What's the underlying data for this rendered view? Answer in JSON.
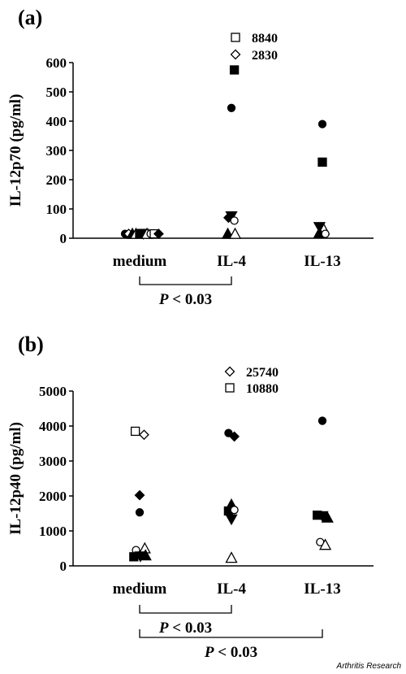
{
  "credit": "Arthritis Research",
  "chart_data": [
    {
      "type": "scatter",
      "panel_label": "(a)",
      "ylabel": "IL-12p70 (pg/ml)",
      "categories": [
        "medium",
        "IL-4",
        "IL-13"
      ],
      "ylim": [
        0,
        600
      ],
      "yticks": [
        0,
        100,
        200,
        300,
        400,
        500,
        600
      ],
      "points": [
        {
          "cat": 0,
          "off": -1.0,
          "y": 15,
          "marker": "filled-circle"
        },
        {
          "cat": 0,
          "off": -0.75,
          "y": 15,
          "marker": "open-diamond"
        },
        {
          "cat": 0,
          "off": -0.5,
          "y": 15,
          "marker": "filled-triangle"
        },
        {
          "cat": 0,
          "off": -0.25,
          "y": 15,
          "marker": "open-triangle"
        },
        {
          "cat": 0,
          "off": 0.0,
          "y": 15,
          "marker": "filled-square"
        },
        {
          "cat": 0,
          "off": 0.25,
          "y": 15,
          "marker": "filled-triangle-down"
        },
        {
          "cat": 0,
          "off": 0.5,
          "y": 15,
          "marker": "open-triangle"
        },
        {
          "cat": 0,
          "off": 0.75,
          "y": 15,
          "marker": "open-circle"
        },
        {
          "cat": 0,
          "off": 1.0,
          "y": 15,
          "marker": "open-square"
        },
        {
          "cat": 0,
          "off": 1.3,
          "y": 15,
          "marker": "filled-diamond"
        },
        {
          "cat": 1,
          "off": 0.2,
          "y": 575,
          "marker": "filled-square"
        },
        {
          "cat": 1,
          "off": 0.0,
          "y": 445,
          "marker": "filled-circle"
        },
        {
          "cat": 1,
          "off": -0.2,
          "y": 70,
          "marker": "filled-diamond"
        },
        {
          "cat": 1,
          "off": 0.0,
          "y": 75,
          "marker": "filled-triangle-down"
        },
        {
          "cat": 1,
          "off": 0.2,
          "y": 60,
          "marker": "open-circle"
        },
        {
          "cat": 1,
          "off": -0.25,
          "y": 15,
          "marker": "filled-triangle"
        },
        {
          "cat": 1,
          "off": 0.25,
          "y": 15,
          "marker": "open-triangle"
        },
        {
          "cat": 2,
          "off": 0.0,
          "y": 390,
          "marker": "filled-circle"
        },
        {
          "cat": 2,
          "off": 0.0,
          "y": 260,
          "marker": "filled-square"
        },
        {
          "cat": 2,
          "off": -0.2,
          "y": 38,
          "marker": "filled-triangle-down"
        },
        {
          "cat": 2,
          "off": 0.1,
          "y": 30,
          "marker": "open-triangle"
        },
        {
          "cat": 2,
          "off": -0.2,
          "y": 18,
          "marker": "filled-triangle"
        },
        {
          "cat": 2,
          "off": 0.2,
          "y": 15,
          "marker": "open-circle"
        }
      ],
      "offscale": [
        {
          "marker": "open-square",
          "label": "8840"
        },
        {
          "marker": "open-diamond",
          "label": "2830"
        }
      ],
      "brackets": [
        {
          "from": 0,
          "to": 1,
          "label": "P < 0.03"
        }
      ]
    },
    {
      "type": "scatter",
      "panel_label": "(b)",
      "ylabel": "IL-12p40 (pg/ml)",
      "categories": [
        "medium",
        "IL-4",
        "IL-13"
      ],
      "ylim": [
        0,
        5000
      ],
      "yticks": [
        0,
        1000,
        2000,
        3000,
        4000,
        5000
      ],
      "points": [
        {
          "cat": 0,
          "off": -0.3,
          "y": 3850,
          "marker": "open-square"
        },
        {
          "cat": 0,
          "off": 0.3,
          "y": 3750,
          "marker": "open-diamond"
        },
        {
          "cat": 0,
          "off": 0.0,
          "y": 2020,
          "marker": "filled-diamond"
        },
        {
          "cat": 0,
          "off": 0.0,
          "y": 1530,
          "marker": "filled-circle"
        },
        {
          "cat": 0,
          "off": -0.25,
          "y": 450,
          "marker": "open-circle"
        },
        {
          "cat": 0,
          "off": 0.35,
          "y": 500,
          "marker": "open-triangle"
        },
        {
          "cat": 0,
          "off": -0.4,
          "y": 260,
          "marker": "filled-square"
        },
        {
          "cat": 0,
          "off": 0.05,
          "y": 270,
          "marker": "filled-triangle-down"
        },
        {
          "cat": 0,
          "off": 0.4,
          "y": 300,
          "marker": "filled-triangle"
        },
        {
          "cat": 1,
          "off": -0.2,
          "y": 3800,
          "marker": "filled-circle"
        },
        {
          "cat": 1,
          "off": 0.2,
          "y": 3700,
          "marker": "filled-diamond"
        },
        {
          "cat": 1,
          "off": 0.0,
          "y": 1750,
          "marker": "filled-triangle"
        },
        {
          "cat": 1,
          "off": -0.2,
          "y": 1570,
          "marker": "filled-square"
        },
        {
          "cat": 1,
          "off": 0.2,
          "y": 1600,
          "marker": "open-circle"
        },
        {
          "cat": 1,
          "off": 0.0,
          "y": 1330,
          "marker": "filled-triangle-down"
        },
        {
          "cat": 1,
          "off": 0.0,
          "y": 230,
          "marker": "open-triangle"
        },
        {
          "cat": 2,
          "off": 0.0,
          "y": 4150,
          "marker": "filled-circle"
        },
        {
          "cat": 2,
          "off": -0.35,
          "y": 1450,
          "marker": "filled-square"
        },
        {
          "cat": 2,
          "off": 0.0,
          "y": 1420,
          "marker": "filled-triangle-down"
        },
        {
          "cat": 2,
          "off": 0.35,
          "y": 1380,
          "marker": "filled-triangle"
        },
        {
          "cat": 2,
          "off": -0.15,
          "y": 680,
          "marker": "open-circle"
        },
        {
          "cat": 2,
          "off": 0.2,
          "y": 600,
          "marker": "open-triangle"
        }
      ],
      "offscale": [
        {
          "marker": "open-diamond",
          "label": "25740"
        },
        {
          "marker": "open-square",
          "label": "10880"
        }
      ],
      "brackets": [
        {
          "from": 0,
          "to": 1,
          "label": "P < 0.03"
        },
        {
          "from": 0,
          "to": 2,
          "label": "P < 0.03"
        }
      ]
    }
  ]
}
